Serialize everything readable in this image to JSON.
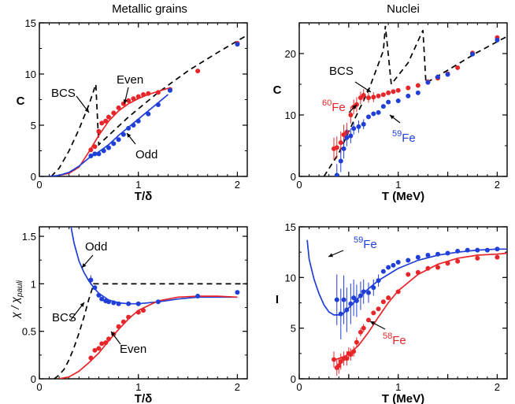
{
  "column_titles": {
    "left": "Metallic grains",
    "right": "Nuclei"
  },
  "colors": {
    "red": "#e8262a",
    "blue": "#1f3fd8",
    "black": "#000000"
  },
  "chart_data": [
    {
      "id": "grains_c",
      "type": "scatter",
      "title": "",
      "xlabel": "T/δ",
      "ylabel": "C",
      "xlim": [
        0,
        2.1
      ],
      "ylim": [
        0,
        15
      ],
      "xticks": [
        0,
        1,
        2
      ],
      "yticks": [
        0,
        5,
        10,
        15
      ],
      "series": [
        {
          "name": "BCS",
          "kind": "line",
          "style": "dashed",
          "color": "black",
          "x": [
            0.12,
            0.2,
            0.3,
            0.4,
            0.5,
            0.57,
            0.6,
            0.9,
            1.2,
            1.5,
            1.8,
            2.1
          ],
          "y": [
            0,
            0.8,
            2.5,
            4.6,
            7,
            9,
            3.1,
            5.8,
            8.2,
            10.3,
            12.1,
            13.8
          ]
        },
        {
          "name": "Even",
          "kind": "line",
          "style": "solid",
          "color": "red",
          "x": [
            0.2,
            0.3,
            0.4,
            0.5,
            0.6,
            0.7,
            0.8,
            0.9,
            1.0,
            1.1,
            1.2,
            1.3
          ],
          "y": [
            0.1,
            0.3,
            0.9,
            2.4,
            4.0,
            5.4,
            6.4,
            7.1,
            7.6,
            8.0,
            8.3,
            8.6
          ]
        },
        {
          "name": "Odd",
          "kind": "line",
          "style": "solid",
          "color": "blue",
          "x": [
            0.1,
            0.2,
            0.3,
            0.4,
            0.5,
            0.6,
            0.7,
            0.8,
            0.9,
            1.0,
            1.1,
            1.2,
            1.3
          ],
          "y": [
            0,
            0.1,
            0.4,
            1.0,
            1.8,
            2.4,
            3.1,
            4.0,
            4.8,
            5.6,
            6.4,
            7.2,
            8.0
          ]
        },
        {
          "name": "Even data",
          "kind": "points",
          "color": "red",
          "x": [
            0.52,
            0.56,
            0.6,
            0.63,
            0.67,
            0.7,
            0.75,
            0.8,
            0.85,
            0.9,
            0.95,
            1.0,
            1.05,
            1.1,
            1.2,
            1.32,
            1.6,
            2.0
          ],
          "y": [
            2.6,
            2.9,
            4.4,
            5.2,
            5.4,
            5.8,
            6.2,
            6.7,
            7.1,
            7.4,
            7.6,
            7.8,
            8.0,
            8.1,
            8.2,
            8.5,
            10.3,
            13.0
          ]
        },
        {
          "name": "Odd data",
          "kind": "points",
          "color": "blue",
          "x": [
            0.52,
            0.56,
            0.6,
            0.65,
            0.7,
            0.75,
            0.8,
            0.85,
            0.9,
            0.95,
            1.0,
            1.1,
            1.2,
            1.32,
            2.0
          ],
          "y": [
            2.0,
            2.2,
            2.2,
            2.5,
            2.8,
            3.2,
            3.6,
            4.1,
            4.7,
            5.0,
            5.4,
            6.1,
            7.0,
            8.4,
            12.9
          ]
        }
      ],
      "annotations": [
        {
          "text": "BCS",
          "color": "black"
        },
        {
          "text": "Even",
          "color": "black"
        },
        {
          "text": "Odd",
          "color": "black"
        }
      ]
    },
    {
      "id": "nuclei_c",
      "type": "scatter",
      "title": "",
      "xlabel": "T (MeV)",
      "ylabel": "C",
      "xlim": [
        0,
        2.1
      ],
      "ylim": [
        0,
        25
      ],
      "xticks": [
        0,
        0.5,
        1,
        1.5,
        2
      ],
      "xticklabels": [
        "0",
        "",
        "1",
        "",
        "2"
      ],
      "yticks": [
        0,
        10,
        20
      ],
      "series": [
        {
          "name": "BCS",
          "kind": "line",
          "style": "dashed",
          "color": "black",
          "x": [
            0.25,
            0.4,
            0.55,
            0.7,
            0.85,
            0.87,
            0.93,
            1.1,
            1.25,
            1.28,
            1.5,
            1.8,
            2.1
          ],
          "y": [
            0,
            3.8,
            9,
            14,
            20.5,
            24.5,
            15,
            18.5,
            23.8,
            15.2,
            17.3,
            20.2,
            22.8
          ]
        },
        {
          "name": "60Fe data",
          "kind": "points",
          "color": "red",
          "err": [
            1.8,
            1.8,
            1.8,
            1.6,
            1.5,
            1.4,
            1.2,
            1.2,
            1,
            1,
            0.8,
            0.8,
            0,
            0,
            0,
            0,
            0,
            0,
            0,
            0,
            0,
            0,
            0,
            0,
            0
          ],
          "x": [
            0.35,
            0.38,
            0.42,
            0.45,
            0.48,
            0.52,
            0.55,
            0.58,
            0.62,
            0.65,
            0.7,
            0.75,
            0.8,
            0.85,
            0.9,
            0.95,
            1.0,
            1.1,
            1.2,
            1.3,
            1.4,
            1.5,
            1.6,
            1.75,
            2.0
          ],
          "y": [
            4.5,
            4.7,
            5.5,
            6.8,
            7.2,
            10.0,
            11.3,
            11.7,
            12.8,
            13.2,
            12.8,
            12.9,
            13.1,
            13.3,
            13.6,
            13.8,
            14.0,
            14.4,
            14.8,
            15.4,
            16.0,
            16.7,
            17.7,
            20.1,
            22.6
          ]
        },
        {
          "name": "59Fe data",
          "kind": "points",
          "color": "blue",
          "err": [
            1.8,
            1.8,
            1.6,
            1.4,
            1.2,
            1,
            1,
            0.8,
            0,
            0,
            0,
            0,
            0,
            0,
            0,
            0,
            0,
            0,
            0,
            0,
            0
          ],
          "x": [
            0.38,
            0.42,
            0.45,
            0.48,
            0.52,
            0.55,
            0.6,
            0.65,
            0.7,
            0.75,
            0.8,
            0.85,
            0.9,
            1.0,
            1.1,
            1.2,
            1.3,
            1.4,
            1.5,
            1.75,
            2.0
          ],
          "y": [
            0.2,
            2.5,
            4.5,
            6.3,
            6.6,
            7.8,
            8.1,
            8.5,
            9.7,
            10.2,
            10.4,
            11.4,
            12.1,
            12.3,
            13.1,
            13.6,
            15.3,
            16.2,
            16.6,
            19.9,
            22.2
          ]
        }
      ],
      "annotations": [
        {
          "text": "BCS",
          "color": "black"
        },
        {
          "text": "60",
          "label": "Fe",
          "color": "red"
        },
        {
          "text": "59",
          "label": "Fe",
          "color": "blue"
        }
      ]
    },
    {
      "id": "grains_chi",
      "type": "scatter",
      "title": "",
      "xlabel": "T/δ",
      "ylabel": "χ / χ",
      "ylabel_sub": "pauli",
      "xlim": [
        0,
        2.1
      ],
      "ylim": [
        0,
        1.6
      ],
      "xticks": [
        0,
        1,
        2
      ],
      "yticks": [
        0,
        0.5,
        1,
        1.5
      ],
      "yticklabels": [
        "0",
        "0.5",
        "1",
        "1.5"
      ],
      "series": [
        {
          "name": "BCS",
          "kind": "line",
          "style": "dashed",
          "color": "black",
          "x": [
            0.15,
            0.2,
            0.25,
            0.3,
            0.35,
            0.4,
            0.45,
            0.5,
            0.55,
            2.1
          ],
          "y": [
            0,
            0.04,
            0.1,
            0.2,
            0.33,
            0.48,
            0.65,
            0.84,
            1.0,
            1.0
          ]
        },
        {
          "name": "Odd",
          "kind": "line",
          "style": "solid",
          "color": "blue",
          "x": [
            0.32,
            0.35,
            0.4,
            0.45,
            0.5,
            0.55,
            0.6,
            0.7,
            0.8,
            0.9,
            1.0,
            1.2,
            1.4,
            1.6,
            1.8,
            2.0
          ],
          "y": [
            1.6,
            1.43,
            1.24,
            1.12,
            1.03,
            0.96,
            0.9,
            0.83,
            0.8,
            0.79,
            0.79,
            0.81,
            0.84,
            0.86,
            0.86,
            0.86
          ]
        },
        {
          "name": "Even",
          "kind": "line",
          "style": "solid",
          "color": "red",
          "x": [
            0.2,
            0.3,
            0.4,
            0.5,
            0.6,
            0.7,
            0.8,
            0.9,
            1.0,
            1.2,
            1.4,
            1.6,
            1.8,
            2.0
          ],
          "y": [
            0,
            0.02,
            0.08,
            0.17,
            0.27,
            0.4,
            0.52,
            0.63,
            0.72,
            0.82,
            0.86,
            0.87,
            0.87,
            0.86
          ]
        },
        {
          "name": "Odd data",
          "kind": "points",
          "color": "blue",
          "err": [
            0.05,
            0,
            0,
            0,
            0,
            0,
            0,
            0,
            0,
            0,
            0,
            0,
            0
          ],
          "x": [
            0.52,
            0.56,
            0.6,
            0.63,
            0.67,
            0.7,
            0.75,
            0.8,
            0.9,
            1.0,
            1.2,
            1.6,
            2.0
          ],
          "y": [
            1.04,
            0.96,
            0.88,
            0.84,
            0.82,
            0.81,
            0.8,
            0.79,
            0.79,
            0.79,
            0.81,
            0.87,
            0.91
          ]
        },
        {
          "name": "Even data",
          "kind": "points",
          "color": "red",
          "x": [
            0.52,
            0.56,
            0.6,
            0.63,
            0.67,
            0.7,
            0.75,
            0.8,
            0.85,
            0.9,
            1.0,
            1.05
          ],
          "y": [
            0.22,
            0.3,
            0.32,
            0.37,
            0.38,
            0.42,
            0.47,
            0.55,
            0.6,
            0.65,
            0.7,
            0.72
          ]
        }
      ],
      "annotations": [
        {
          "text": "Odd",
          "color": "black"
        },
        {
          "text": "BCS",
          "color": "black"
        },
        {
          "text": "Even",
          "color": "black"
        }
      ]
    },
    {
      "id": "nuclei_i",
      "type": "scatter",
      "title": "",
      "xlabel": "T (MeV)",
      "ylabel": "I",
      "xlim": [
        0,
        2.1
      ],
      "ylim": [
        0,
        15
      ],
      "xticks": [
        0,
        0.5,
        1,
        1.5,
        2
      ],
      "xticklabels": [
        "0",
        "",
        "1",
        "",
        "2"
      ],
      "yticks": [
        0,
        5,
        10,
        15
      ],
      "series": [
        {
          "name": "59Fe curve",
          "kind": "line",
          "style": "solid",
          "color": "blue",
          "x": [
            0.08,
            0.1,
            0.15,
            0.2,
            0.25,
            0.3,
            0.35,
            0.4,
            0.45,
            0.5,
            0.6,
            0.7,
            0.8,
            0.9,
            1.0,
            1.2,
            1.4,
            1.6,
            1.8,
            2.0,
            2.1
          ],
          "y": [
            13.7,
            11.8,
            9.8,
            8.4,
            7.3,
            6.6,
            6.3,
            6.3,
            6.5,
            7.0,
            8.0,
            8.9,
            9.7,
            10.3,
            10.9,
            11.7,
            12.2,
            12.5,
            12.7,
            12.8,
            12.8
          ]
        },
        {
          "name": "58Fe curve",
          "kind": "line",
          "style": "solid",
          "color": "red",
          "x": [
            0.35,
            0.4,
            0.5,
            0.6,
            0.7,
            0.8,
            0.9,
            1.0,
            1.2,
            1.4,
            1.6,
            1.8,
            2.0,
            2.1
          ],
          "y": [
            1.9,
            2.0,
            2.4,
            3.3,
            4.6,
            6.1,
            7.5,
            8.7,
            10.3,
            11.3,
            11.9,
            12.2,
            12.3,
            12.4
          ]
        },
        {
          "name": "59Fe data",
          "kind": "points",
          "color": "blue",
          "err": [
            2.5,
            2.5,
            2.4,
            2.2,
            2,
            1.8,
            1.6,
            1.4,
            1.2,
            1,
            0.8,
            0.6,
            0,
            0,
            0,
            0,
            0,
            0,
            0,
            0,
            0,
            0,
            0,
            0,
            0,
            0
          ],
          "x": [
            0.38,
            0.42,
            0.45,
            0.48,
            0.52,
            0.55,
            0.58,
            0.62,
            0.65,
            0.7,
            0.75,
            0.8,
            0.85,
            0.9,
            0.95,
            1.0,
            1.1,
            1.2,
            1.3,
            1.4,
            1.5,
            1.6,
            1.7,
            1.8,
            1.9,
            2.0
          ],
          "y": [
            7.8,
            6.4,
            7.8,
            6.8,
            7.4,
            8.0,
            7.7,
            8.2,
            8.6,
            8.5,
            9.0,
            9.7,
            10.6,
            11.0,
            11.2,
            11.5,
            11.7,
            12.0,
            12.2,
            12.3,
            12.4,
            12.6,
            12.7,
            12.7,
            12.7,
            12.8
          ]
        },
        {
          "name": "58Fe data",
          "kind": "points",
          "color": "red",
          "err": [
            0.8,
            0.8,
            0.8,
            0.8,
            0.7,
            0.7,
            0.6,
            0.6,
            0.5,
            0.5,
            0.4,
            0.4,
            0,
            0,
            0,
            0,
            0,
            0,
            0,
            0,
            0,
            0,
            0,
            0,
            0,
            0
          ],
          "x": [
            0.35,
            0.38,
            0.4,
            0.42,
            0.45,
            0.48,
            0.5,
            0.52,
            0.55,
            0.58,
            0.62,
            0.65,
            0.7,
            0.75,
            0.8,
            0.85,
            0.9,
            1.0,
            1.1,
            1.2,
            1.3,
            1.4,
            1.5,
            1.6,
            1.8,
            2.0
          ],
          "y": [
            1.9,
            1.1,
            1.3,
            1.7,
            2.0,
            2.0,
            2.5,
            2.4,
            2.7,
            3.6,
            4.6,
            5.0,
            5.8,
            6.5,
            6.9,
            7.6,
            8.0,
            8.6,
            10.3,
            10.5,
            10.9,
            11.0,
            11.4,
            11.6,
            11.9,
            12.0
          ]
        }
      ],
      "annotations": [
        {
          "text": "59",
          "label": "Fe",
          "color": "blue"
        },
        {
          "text": "58",
          "label": "Fe",
          "color": "red"
        }
      ]
    }
  ]
}
